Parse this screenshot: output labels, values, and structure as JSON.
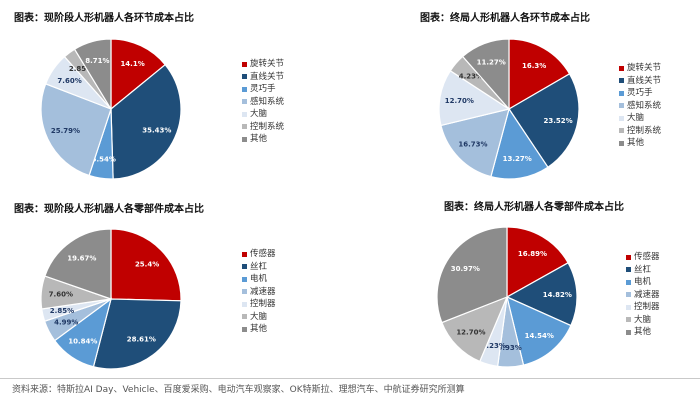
{
  "chart_data": [
    {
      "type": "pie",
      "title": "图表：现阶段人形机器人各环节成本占比",
      "categories": [
        "旋转关节",
        "直线关节",
        "灵巧手",
        "感知系统",
        "大脑",
        "控制系统",
        "其他"
      ],
      "values": [
        14.1,
        35.43,
        5.54,
        25.79,
        7.6,
        2.85,
        8.71
      ],
      "labels": [
        "14.1%",
        "35.43%",
        "5.54%",
        "25.79%",
        "7.60%",
        "2.85%",
        "8.71%"
      ],
      "legend_position": "right"
    },
    {
      "type": "pie",
      "title": "图表：终局人形机器人各环节成本占比",
      "categories": [
        "旋转关节",
        "直线关节",
        "灵巧手",
        "感知系统",
        "大脑",
        "控制系统",
        "其他"
      ],
      "values": [
        16.3,
        23.52,
        13.27,
        16.73,
        12.7,
        4.23,
        11.27
      ],
      "labels": [
        "16.3%",
        "23.52%",
        "13.27%",
        "16.73%",
        "12.70%",
        "4.23%",
        "11.27%"
      ],
      "legend_position": "right"
    },
    {
      "type": "pie",
      "title": "图表：现阶段人形机器人各零部件成本占比",
      "categories": [
        "传感器",
        "丝杠",
        "电机",
        "减速器",
        "控制器",
        "大脑",
        "其他"
      ],
      "values": [
        25.4,
        28.61,
        10.84,
        4.99,
        2.85,
        7.6,
        19.67
      ],
      "labels": [
        "25.4%",
        "28.61%",
        "10.84%",
        "4.99%",
        "2.85%",
        "7.60%",
        "19.67%"
      ],
      "legend_position": "right"
    },
    {
      "type": "pie",
      "title": "图表：终局人形机器人各零部件成本占比",
      "categories": [
        "传感器",
        "丝杠",
        "电机",
        "减速器",
        "控制器",
        "大脑",
        "其他"
      ],
      "values": [
        16.89,
        14.82,
        14.54,
        5.93,
        4.23,
        12.7,
        30.97
      ],
      "labels": [
        "16.89%",
        "14.82%",
        "14.54%",
        "5.93%",
        "4.23%",
        "12.70%",
        "30.97%"
      ],
      "legend_position": "right"
    }
  ],
  "colors": [
    "#c00000",
    "#1f4e79",
    "#5b9bd5",
    "#a4bfdc",
    "#dde6f2",
    "#b8b8b8",
    "#8c8c8c"
  ],
  "label_colors": [
    "#ffffff",
    "#ffffff",
    "#ffffff",
    "#1f3864",
    "#1f3864",
    "#333333",
    "#ffffff"
  ],
  "footer": "资料来源：特斯拉AI Day、Vehicle、百度爱采购、电动汽车观察家、OK特斯拉、理想汽车、中航证券研究所测算"
}
